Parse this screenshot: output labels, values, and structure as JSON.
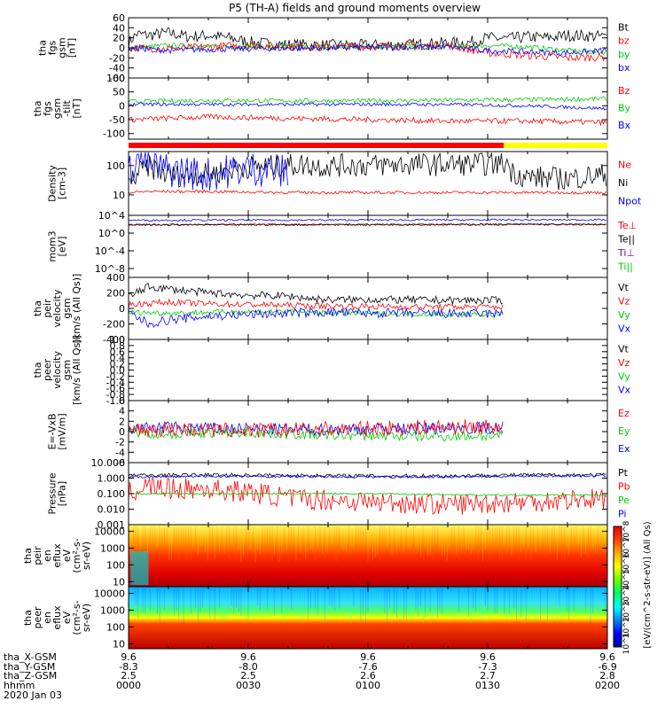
{
  "title": "P5 (TH-A) fields and ground moments overview",
  "chart_data": [
    {
      "id": "fgs",
      "type": "line",
      "ylabel": [
        "tha",
        "fgs",
        "gsm",
        "[nT]"
      ],
      "ylim": [
        -60,
        60
      ],
      "ticks": [
        60,
        40,
        20,
        0,
        -20,
        -40,
        -60
      ],
      "tick_labels": [
        "60",
        "40",
        "20",
        "0",
        "-20",
        "-40",
        "-60"
      ],
      "legend": [
        {
          "name": "Bt",
          "color": "#000000"
        },
        {
          "name": "bz",
          "color": "#ff0000"
        },
        {
          "name": "by",
          "color": "#00cc00"
        },
        {
          "name": "bx",
          "color": "#0000ff"
        }
      ],
      "series": [
        {
          "name": "Bt",
          "color": "#000000",
          "x": [
            0,
            2,
            5,
            10,
            15,
            20,
            25,
            30,
            35,
            40,
            45,
            50,
            55,
            60,
            65,
            70,
            75,
            80,
            85,
            88,
            90,
            95,
            100,
            105,
            110,
            115,
            120
          ],
          "y": [
            10,
            28,
            25,
            30,
            22,
            25,
            20,
            12,
            8,
            6,
            6,
            5,
            5,
            5,
            6,
            6,
            8,
            10,
            10,
            16,
            20,
            18,
            22,
            20,
            25,
            24,
            22
          ],
          "noise": 12
        },
        {
          "name": "by",
          "color": "#00cc00",
          "x": [
            0,
            10,
            20,
            30,
            40,
            50,
            60,
            70,
            80,
            90,
            100,
            110,
            120
          ],
          "y": [
            0,
            5,
            2,
            3,
            2,
            2,
            3,
            4,
            2,
            5,
            2,
            -5,
            -10
          ],
          "noise": 5
        },
        {
          "name": "bz",
          "color": "#ff0000",
          "x": [
            0,
            10,
            20,
            30,
            40,
            50,
            60,
            70,
            80,
            90,
            100,
            110,
            120
          ],
          "y": [
            0,
            -2,
            2,
            5,
            3,
            2,
            3,
            5,
            5,
            -10,
            -15,
            -20,
            -18
          ],
          "noise": 8
        },
        {
          "name": "bx",
          "color": "#0000ff",
          "x": [
            0,
            10,
            20,
            30,
            40,
            50,
            60,
            70,
            80,
            90,
            100,
            110,
            120
          ],
          "y": [
            0,
            -5,
            -3,
            -2,
            -1,
            0,
            1,
            1,
            2,
            -5,
            -8,
            -10,
            -5
          ],
          "noise": 6
        }
      ]
    },
    {
      "id": "fgs_tilt",
      "type": "line",
      "ylabel": [
        "tha",
        "fgs",
        "gsm",
        "-tilt",
        "[nT]"
      ],
      "ylim": [
        -120,
        100
      ],
      "ticks": [
        100,
        50,
        0,
        -50,
        -100
      ],
      "tick_labels": [
        "100",
        "50",
        "0",
        "-50",
        "-100"
      ],
      "legend": [
        {
          "name": "Bz",
          "color": "#ff0000"
        },
        {
          "name": "By",
          "color": "#00cc00"
        },
        {
          "name": "Bx",
          "color": "#0000ff"
        }
      ],
      "series": [
        {
          "name": "By",
          "color": "#00cc00",
          "x": [
            0,
            20,
            40,
            60,
            80,
            100,
            120
          ],
          "y": [
            15,
            20,
            18,
            18,
            20,
            22,
            25
          ],
          "noise": 8
        },
        {
          "name": "Bx",
          "color": "#0000ff",
          "x": [
            0,
            20,
            40,
            60,
            80,
            100,
            120
          ],
          "y": [
            5,
            5,
            5,
            5,
            5,
            0,
            -10
          ],
          "noise": 6
        },
        {
          "name": "Bz",
          "color": "#ff0000",
          "x": [
            0,
            20,
            40,
            60,
            80,
            100,
            120
          ],
          "y": [
            -50,
            -40,
            -45,
            -50,
            -55,
            -55,
            -60
          ],
          "noise": 10
        }
      ]
    },
    {
      "id": "density",
      "type": "line",
      "scale": "log",
      "ylabel": [
        "Density",
        "[cm-3]"
      ],
      "ylim": [
        2,
        300
      ],
      "ticks": [
        100,
        10
      ],
      "tick_labels": [
        "100",
        "10"
      ],
      "legend": [
        {
          "name": "Ne",
          "color": "#ff0000"
        },
        {
          "name": "Ni",
          "color": "#000000"
        },
        {
          "name": "Npot",
          "color": "#0000ff"
        }
      ],
      "series": [
        {
          "name": "Ni",
          "color": "#000000",
          "x": [
            0,
            5,
            10,
            20,
            30,
            40,
            43,
            46,
            50,
            55,
            60,
            70,
            80,
            90,
            95,
            96,
            100,
            110,
            120
          ],
          "y": [
            20,
            90,
            45,
            50,
            90,
            100,
            110,
            100,
            95,
            105,
            100,
            110,
            110,
            110,
            120,
            60,
            40,
            35,
            50
          ],
          "noise": 0.4
        },
        {
          "name": "Ne",
          "color": "#ff0000",
          "x": [
            0,
            5,
            10,
            20,
            40,
            60,
            80,
            100,
            120
          ],
          "y": [
            12,
            13,
            13,
            13,
            12,
            12,
            12,
            12,
            12
          ],
          "noise": 0.05
        },
        {
          "name": "Npot",
          "color": "#0000ff",
          "x": [
            0,
            3,
            6,
            10,
            15,
            20,
            30,
            40
          ],
          "y": [
            50,
            200,
            90,
            70,
            60,
            50,
            80,
            60
          ],
          "noise": 0.6
        }
      ]
    },
    {
      "id": "temp",
      "type": "line",
      "scale": "log",
      "ylabel": [
        "mom3",
        "[eV]"
      ],
      "ylim": [
        1e-10,
        10000
      ],
      "ticks": [
        10000,
        1,
        0.0001,
        1e-08
      ],
      "tick_labels": [
        "10^4",
        "10^0",
        "10^-4",
        "10^-8"
      ],
      "legend": [
        {
          "name": "Te⊥",
          "color": "#ff0000"
        },
        {
          "name": "Te||",
          "color": "#000000"
        },
        {
          "name": "Ti⊥",
          "color": "#880088"
        },
        {
          "name": "Ti||",
          "color": "#00cc00"
        }
      ],
      "series": [
        {
          "name": "Ti",
          "color": "#0000ff",
          "x": [
            0,
            60,
            120
          ],
          "y": [
            800,
            900,
            1000
          ],
          "noise": 0.2
        },
        {
          "name": "Te",
          "color": "#ff0000",
          "x": [
            0,
            60,
            120
          ],
          "y": [
            80,
            90,
            100
          ],
          "noise": 0.2
        },
        {
          "name": "Te||",
          "color": "#000000",
          "x": [
            0,
            60,
            120
          ],
          "y": [
            70,
            80,
            90
          ],
          "noise": 0.2
        }
      ]
    },
    {
      "id": "peir_vel",
      "type": "line",
      "ylabel": [
        "tha",
        "peir",
        "velocity",
        "gsm",
        "[km/s (All Qs)]"
      ],
      "ylim": [
        -400,
        400
      ],
      "ticks": [
        400,
        200,
        0,
        -200,
        -400
      ],
      "tick_labels": [
        "400",
        "200",
        "0",
        "-200",
        "-400"
      ],
      "legend": [
        {
          "name": "Vt",
          "color": "#000000"
        },
        {
          "name": "Vz",
          "color": "#ff0000"
        },
        {
          "name": "Vy",
          "color": "#00cc00"
        },
        {
          "name": "Vx",
          "color": "#0000ff"
        }
      ],
      "series": [
        {
          "name": "Vt",
          "color": "#000000",
          "x": [
            0,
            5,
            10,
            20,
            30,
            40,
            45,
            50,
            60,
            70,
            80,
            90,
            94
          ],
          "y": [
            150,
            280,
            250,
            200,
            170,
            160,
            130,
            110,
            115,
            110,
            105,
            105,
            100
          ],
          "noise": 50
        },
        {
          "name": "Vz",
          "color": "#ff0000",
          "x": [
            0,
            10,
            20,
            30,
            40,
            50,
            60,
            70,
            80,
            94
          ],
          "y": [
            50,
            80,
            60,
            50,
            40,
            30,
            25,
            20,
            20,
            20
          ],
          "noise": 40
        },
        {
          "name": "Vy",
          "color": "#00cc00",
          "x": [
            0,
            10,
            20,
            30,
            40,
            50,
            60,
            70,
            80,
            94
          ],
          "y": [
            -50,
            -60,
            -50,
            -40,
            -40,
            -60,
            -70,
            -70,
            -75,
            -80
          ],
          "noise": 35
        },
        {
          "name": "Vx",
          "color": "#0000ff",
          "x": [
            0,
            5,
            10,
            20,
            30,
            40,
            50,
            60,
            70,
            80,
            94
          ],
          "y": [
            -50,
            -200,
            -150,
            -100,
            -80,
            -60,
            -50,
            -60,
            -60,
            -70,
            -70
          ],
          "noise": 60
        }
      ]
    },
    {
      "id": "peer_vel",
      "type": "line",
      "ylabel": [
        "tha",
        "peer",
        "velocity",
        "gsm",
        "[km/s (All Qs)]"
      ],
      "ylim": [
        -1,
        1
      ],
      "ticks": [
        1,
        0.8,
        0.6,
        0.4,
        0.2,
        0,
        -0.2,
        -0.4,
        -0.6,
        -0.8,
        -1
      ],
      "tick_labels": [
        "1.0",
        "0.8",
        "0.6",
        "0.4",
        "0.2",
        "0.0",
        "-0.2",
        "-0.4",
        "-0.6",
        "-0.8",
        "-1.0"
      ],
      "legend": [
        {
          "name": "Vt",
          "color": "#000000"
        },
        {
          "name": "Vz",
          "color": "#ff0000"
        },
        {
          "name": "Vy",
          "color": "#00cc00"
        },
        {
          "name": "Vx",
          "color": "#0000ff"
        }
      ],
      "series": []
    },
    {
      "id": "exb",
      "type": "line",
      "ylabel": [
        "E=-VxB",
        "[mV/m]"
      ],
      "ylim": [
        -6,
        6
      ],
      "ticks": [
        6,
        4,
        2,
        0,
        -2,
        -4,
        -6
      ],
      "tick_labels": [
        "6",
        "4",
        "2",
        "0",
        "-2",
        "-4",
        "-6"
      ],
      "legend": [
        {
          "name": "Ez",
          "color": "#ff0000"
        },
        {
          "name": "Ey",
          "color": "#00cc00"
        },
        {
          "name": "Ex",
          "color": "#0000ff"
        }
      ],
      "series": [
        {
          "name": "Ex",
          "color": "#0000ff",
          "x": [
            0,
            10,
            20,
            30,
            40,
            50,
            60,
            70,
            80,
            94
          ],
          "y": [
            0.5,
            0.8,
            0.6,
            0.5,
            0.4,
            0.4,
            0.5,
            0.6,
            0.7,
            0.8
          ],
          "noise": 1.2
        },
        {
          "name": "Ey",
          "color": "#00cc00",
          "x": [
            0,
            10,
            20,
            30,
            40,
            50,
            60,
            70,
            80,
            94
          ],
          "y": [
            0,
            -0.5,
            -0.3,
            -0.2,
            -0.5,
            -0.7,
            -0.8,
            -0.9,
            -0.9,
            -0.8
          ],
          "noise": 1.0
        },
        {
          "name": "Ez",
          "color": "#ff0000",
          "x": [
            0,
            10,
            20,
            30,
            40,
            50,
            60,
            70,
            80,
            94
          ],
          "y": [
            0.3,
            0.5,
            0.3,
            0.2,
            0.3,
            0.5,
            0.6,
            0.8,
            0.9,
            0.9
          ],
          "noise": 1.5
        }
      ]
    },
    {
      "id": "pressure",
      "type": "line",
      "scale": "log",
      "ylabel": [
        "Pressure",
        "[nPa]"
      ],
      "ylim": [
        0.001,
        10
      ],
      "ticks": [
        10,
        1,
        0.1,
        0.01,
        0.001
      ],
      "tick_labels": [
        "10.000",
        "1.000",
        "0.100",
        "0.010",
        "0.001"
      ],
      "legend": [
        {
          "name": "Pt",
          "color": "#000000"
        },
        {
          "name": "Pb",
          "color": "#ff0000"
        },
        {
          "name": "Pe",
          "color": "#00cc00"
        },
        {
          "name": "Pi",
          "color": "#0000ff"
        }
      ],
      "series": [
        {
          "name": "Pt",
          "color": "#000000",
          "x": [
            0,
            20,
            40,
            60,
            80,
            100,
            120
          ],
          "y": [
            1.5,
            1.6,
            1.5,
            1.4,
            1.4,
            1.6,
            1.6
          ],
          "noise": 0.12
        },
        {
          "name": "Pi",
          "color": "#0000ff",
          "x": [
            0,
            20,
            40,
            60,
            80,
            100,
            120
          ],
          "y": [
            1.2,
            1.3,
            1.3,
            1.2,
            1.2,
            1.4,
            1.4
          ],
          "noise": 0.08
        },
        {
          "name": "Pb",
          "color": "#ff0000",
          "x": [
            0,
            5,
            10,
            20,
            40,
            60,
            80,
            100,
            120
          ],
          "y": [
            0.1,
            0.3,
            0.2,
            0.2,
            0.05,
            0.03,
            0.02,
            0.03,
            0.05
          ],
          "noise": 0.7
        },
        {
          "name": "Pe",
          "color": "#00cc00",
          "x": [
            0,
            10,
            30,
            60,
            90,
            120
          ],
          "y": [
            0.1,
            0.1,
            0.1,
            0.1,
            0.08,
            0.08
          ],
          "noise": 0.05
        }
      ]
    },
    {
      "id": "peir_en",
      "type": "heatmap",
      "scale": "log",
      "ylabel": [
        "tha",
        "peir",
        "en",
        "eflux",
        "eV",
        "(cm²-s-",
        "sr-eV)"
      ],
      "ylim": [
        5,
        25000
      ],
      "ticks": [
        10000,
        1000,
        100,
        10
      ],
      "tick_labels": [
        "10000",
        "1000",
        "100",
        "10"
      ]
    },
    {
      "id": "peer_en",
      "type": "heatmap",
      "scale": "log",
      "ylabel": [
        "tha",
        "peer",
        "en",
        "eflux",
        "eV",
        "(cm²-s-",
        "sr-eV)"
      ],
      "ylim": [
        5,
        25000
      ],
      "ticks": [
        10000,
        1000,
        100,
        10
      ],
      "tick_labels": [
        "10000",
        "1000",
        "100",
        "10"
      ]
    }
  ],
  "colorbar": {
    "label": "[eV/(cm^2-s-str-eV)] (All Qs)",
    "tick_labels": [
      "10^8",
      "10^7",
      "10^6",
      "10^5",
      "10^4",
      "10^3",
      "10^2",
      "10^1"
    ],
    "colors": [
      "#0000aa",
      "#0000ff",
      "#0088ff",
      "#00ffff",
      "#00ff66",
      "#66ff00",
      "#ffff00",
      "#ffaa00",
      "#ff4400",
      "#dd0000"
    ]
  },
  "status_bar": {
    "colors": [
      "#ff0000",
      "#ffff00"
    ],
    "breaks": [
      0,
      94,
      120
    ]
  },
  "xaxis": {
    "range_minutes": [
      0,
      120
    ],
    "ticks": [
      0,
      30,
      60,
      90,
      120
    ],
    "rows": [
      {
        "label": "tha_X-GSM",
        "values": [
          "9.6",
          "9.6",
          "9.6",
          "9.6",
          "9.6"
        ]
      },
      {
        "label": "tha_Y-GSM",
        "values": [
          "-8.3",
          "-8.0",
          "-7.6",
          "-7.3",
          "-6.9"
        ]
      },
      {
        "label": "tha_Z-GSM",
        "values": [
          "2.5",
          "2.5",
          "2.6",
          "2.7",
          "2.8"
        ]
      },
      {
        "label": "hhmm",
        "values": [
          "0000",
          "0030",
          "0100",
          "0130",
          "0200"
        ]
      }
    ],
    "date": "2020 Jan 03"
  }
}
